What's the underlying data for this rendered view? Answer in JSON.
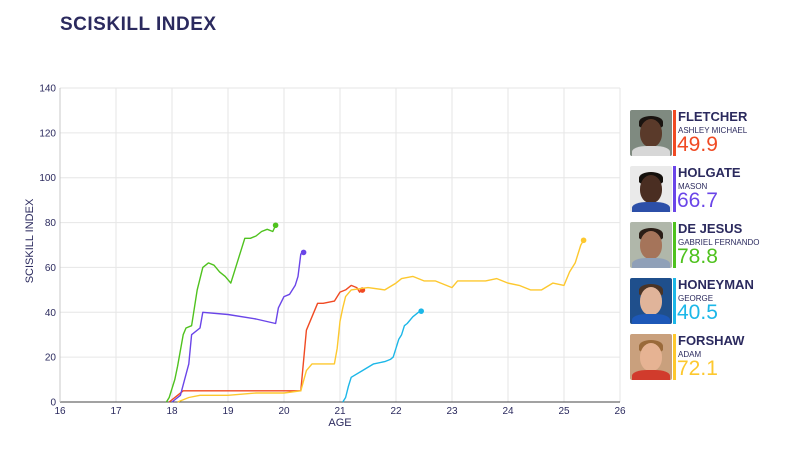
{
  "title": "SCISKILL INDEX",
  "chart_data": {
    "type": "line",
    "title": "SCISKILL INDEX",
    "xlabel": "AGE",
    "ylabel": "SCISKILL INDEX",
    "xlim": [
      16,
      26
    ],
    "ylim": [
      0,
      140
    ],
    "xticks": [
      "16",
      "17",
      "18",
      "19",
      "20",
      "21",
      "22",
      "23",
      "24",
      "25",
      "26"
    ],
    "yticks": [
      "0",
      "20",
      "40",
      "60",
      "80",
      "100",
      "120",
      "140"
    ],
    "grid": true,
    "legend_placement": "right",
    "series": [
      {
        "name": "FLETCHER",
        "color": "#f04a23",
        "x": [
          17.95,
          18.1,
          18.2,
          19.0,
          19.8,
          20.3,
          20.4,
          20.6,
          20.7,
          20.9,
          21.0,
          21.1,
          21.2,
          21.3,
          21.35,
          21.4
        ],
        "y": [
          0,
          3,
          5,
          5,
          5,
          5,
          32,
          44,
          44,
          45,
          49,
          50,
          52,
          51,
          49,
          49.9
        ]
      },
      {
        "name": "HOLGATE",
        "color": "#6a45e8",
        "x": [
          18.0,
          18.15,
          18.3,
          18.35,
          18.5,
          18.55,
          19.0,
          19.5,
          19.85,
          19.9,
          20.0,
          20.1,
          20.2,
          20.25,
          20.3,
          20.35
        ],
        "y": [
          0,
          3,
          17,
          30,
          33,
          40,
          39,
          37,
          35,
          42,
          47,
          48,
          52,
          56,
          66,
          66.7
        ]
      },
      {
        "name": "DE JESUS",
        "color": "#4fc21e",
        "x": [
          17.9,
          17.95,
          18.0,
          18.05,
          18.1,
          18.2,
          18.25,
          18.35,
          18.45,
          18.55,
          18.65,
          18.75,
          18.85,
          18.95,
          19.05,
          19.1,
          19.2,
          19.3,
          19.4,
          19.5,
          19.6,
          19.7,
          19.8,
          19.85
        ],
        "y": [
          0,
          2,
          6,
          10,
          16,
          30,
          33,
          34,
          50,
          60,
          62,
          61,
          58,
          56,
          53,
          57,
          65,
          73,
          73,
          74,
          76,
          77,
          76,
          78.8
        ]
      },
      {
        "name": "HONEYMAN",
        "color": "#1cb7e8",
        "x": [
          21.05,
          21.1,
          21.15,
          21.2,
          21.4,
          21.6,
          21.8,
          21.9,
          21.95,
          22.0,
          22.05,
          22.1,
          22.15,
          22.2,
          22.3,
          22.4,
          22.45
        ],
        "y": [
          0,
          2,
          7,
          11,
          14,
          17,
          18,
          19,
          20,
          24,
          28,
          30,
          34,
          35,
          38,
          40,
          40.5
        ]
      },
      {
        "name": "FORSHAW",
        "color": "#fdc82e",
        "x": [
          18.1,
          18.3,
          18.5,
          19.0,
          19.5,
          20.0,
          20.3,
          20.4,
          20.5,
          20.9,
          20.95,
          21.0,
          21.05,
          21.1,
          21.2,
          21.5,
          21.8,
          22.0,
          22.1,
          22.3,
          22.5,
          22.7,
          23.0,
          23.1,
          23.3,
          23.6,
          23.8,
          24.0,
          24.2,
          24.4,
          24.6,
          24.8,
          25.0,
          25.1,
          25.2,
          25.3,
          25.35
        ],
        "y": [
          0,
          2,
          3,
          3,
          4,
          4,
          5,
          14,
          17,
          17,
          24,
          36,
          42,
          47,
          50,
          51,
          50,
          53,
          55,
          56,
          54,
          54,
          51,
          54,
          54,
          54,
          55,
          53,
          52,
          50,
          50,
          53,
          52,
          58,
          62,
          70,
          72.1
        ]
      }
    ]
  },
  "legend": [
    {
      "surname": "FLETCHER",
      "firstname": "ASHLEY MICHAEL",
      "score": "49.9",
      "color": "#f04a23",
      "skin": "#5a3a2a",
      "hair": "#1a1410",
      "bg": "#7f8a80",
      "shirt": "#d7d7d7"
    },
    {
      "surname": "HOLGATE",
      "firstname": "MASON",
      "score": "66.7",
      "color": "#6a45e8",
      "skin": "#4a2e22",
      "hair": "#14100c",
      "bg": "#eaeaea",
      "shirt": "#2c4fa8"
    },
    {
      "surname": "DE JESUS",
      "firstname": "GABRIEL FERNANDO",
      "score": "78.8",
      "color": "#4fc21e",
      "skin": "#a5745a",
      "hair": "#2a1d16",
      "bg": "#b0b7aa",
      "shirt": "#8fa0b8"
    },
    {
      "surname": "HONEYMAN",
      "firstname": "GEORGE",
      "score": "40.5",
      "color": "#1cb7e8",
      "skin": "#e0b49a",
      "hair": "#4a3426",
      "bg": "#1f4f8c",
      "shirt": "#1d58b8"
    },
    {
      "surname": "FORSHAW",
      "firstname": "ADAM",
      "score": "72.1",
      "color": "#fdc82e",
      "skin": "#e6b393",
      "hair": "#9a6a3a",
      "bg": "#c9a07d",
      "shirt": "#d13b2c"
    }
  ]
}
